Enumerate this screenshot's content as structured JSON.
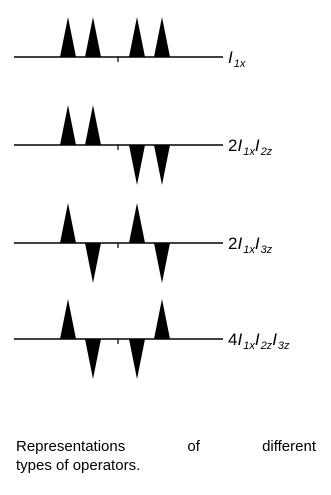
{
  "rows": [
    {
      "label": [
        {
          "t": "I",
          "k": "i"
        },
        {
          "t": "1x",
          "k": "sub"
        }
      ],
      "peaks": [
        1,
        1,
        1,
        1
      ]
    },
    {
      "label": [
        {
          "t": "2",
          "k": "up"
        },
        {
          "t": "I",
          "k": "i"
        },
        {
          "t": "1x",
          "k": "sub"
        },
        {
          "t": "I",
          "k": "i"
        },
        {
          "t": "2z",
          "k": "sub"
        }
      ],
      "peaks": [
        1,
        1,
        -1,
        -1
      ]
    },
    {
      "label": [
        {
          "t": "2",
          "k": "up"
        },
        {
          "t": "I",
          "k": "i"
        },
        {
          "t": "1x",
          "k": "sub"
        },
        {
          "t": "I",
          "k": "i"
        },
        {
          "t": "3z",
          "k": "sub"
        }
      ],
      "peaks": [
        1,
        -1,
        1,
        -1
      ]
    },
    {
      "label": [
        {
          "t": "4",
          "k": "up"
        },
        {
          "t": "I",
          "k": "i"
        },
        {
          "t": "1x",
          "k": "sub"
        },
        {
          "t": "I",
          "k": "i"
        },
        {
          "t": "2z",
          "k": "sub"
        },
        {
          "t": "I",
          "k": "i"
        },
        {
          "t": "3z",
          "k": "sub"
        }
      ],
      "peaks": [
        1,
        -1,
        -1,
        1
      ]
    }
  ],
  "caption": {
    "line1": "Representations of different",
    "line2": "types of operators."
  },
  "colors": {
    "ink": "#000000",
    "background": "#ffffff"
  }
}
